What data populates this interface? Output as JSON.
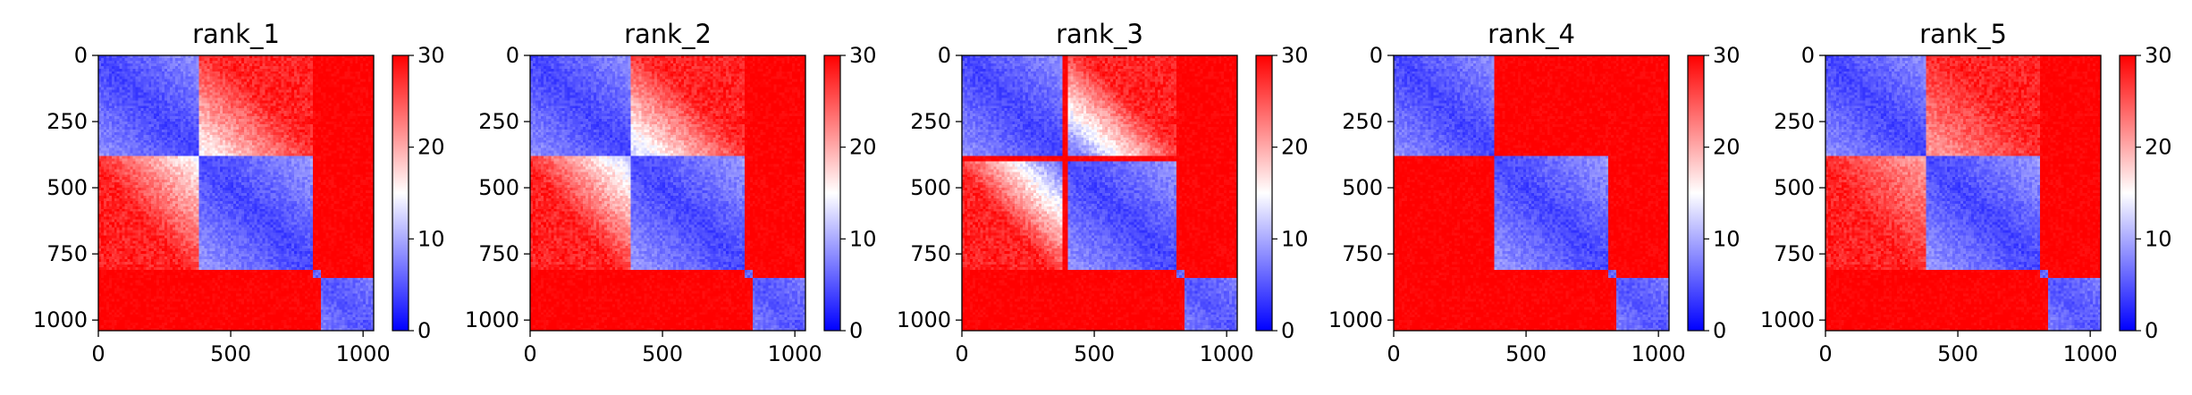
{
  "chart_data": {
    "type": "heatmap",
    "colormap": {
      "name": "bwr",
      "low": "#0000ff",
      "mid": "#ffffff",
      "high": "#ff0000"
    },
    "matrix_size": 1040,
    "color_range": [
      0,
      30
    ],
    "colorbar_ticks": [
      "0",
      "10",
      "20",
      "30"
    ],
    "x_ticks": [
      {
        "value": 0,
        "label": "0"
      },
      {
        "value": 500,
        "label": "500"
      },
      {
        "value": 1000,
        "label": "1000"
      }
    ],
    "y_ticks": [
      {
        "value": 0,
        "label": "0"
      },
      {
        "value": 250,
        "label": "250"
      },
      {
        "value": 500,
        "label": "500"
      },
      {
        "value": 750,
        "label": "750"
      },
      {
        "value": 1000,
        "label": "1000"
      }
    ],
    "xlim": [
      0,
      1040
    ],
    "ylim": [
      1040,
      0
    ],
    "panels": [
      {
        "title": "rank_1",
        "blocks": [
          [
            0,
            380,
            4
          ],
          [
            380,
            810,
            4
          ],
          [
            810,
            840,
            6
          ],
          [
            840,
            1040,
            5
          ]
        ],
        "overlap": [
          [
            0,
            380,
            380,
            810,
            0.45
          ]
        ]
      },
      {
        "title": "rank_2",
        "blocks": [
          [
            0,
            380,
            4
          ],
          [
            380,
            810,
            4
          ],
          [
            810,
            840,
            6
          ],
          [
            840,
            1040,
            5
          ]
        ],
        "overlap": [
          [
            0,
            380,
            380,
            810,
            0.55
          ]
        ]
      },
      {
        "title": "rank_3",
        "blocks": [
          [
            0,
            380,
            4
          ],
          [
            400,
            810,
            4
          ],
          [
            810,
            840,
            6
          ],
          [
            840,
            1040,
            5
          ]
        ],
        "overlap": [
          [
            0,
            380,
            400,
            810,
            0.75
          ]
        ]
      },
      {
        "title": "rank_4",
        "blocks": [
          [
            0,
            380,
            4
          ],
          [
            380,
            810,
            4
          ],
          [
            810,
            840,
            6
          ],
          [
            840,
            1040,
            5
          ]
        ],
        "overlap": []
      },
      {
        "title": "rank_5",
        "blocks": [
          [
            0,
            380,
            4
          ],
          [
            380,
            810,
            4
          ],
          [
            810,
            840,
            6
          ],
          [
            840,
            1040,
            5
          ]
        ],
        "overlap": [
          [
            0,
            380,
            380,
            810,
            0.25
          ]
        ]
      }
    ]
  }
}
